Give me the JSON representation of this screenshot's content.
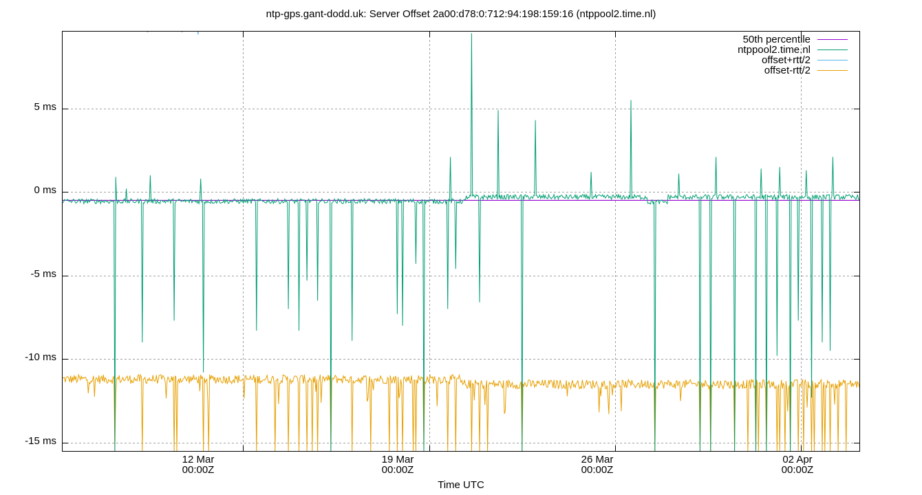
{
  "chart_data": {
    "type": "line",
    "title": "ntp-gps.gant-dodd.uk: Server Offset 2a00:d78:0:712:94:198:159:16 (ntppool2.time.nl)",
    "xlabel": "Time UTC",
    "ylabel": "",
    "y_unit": "ms",
    "ylim": [
      -15.5,
      9.6
    ],
    "xlim": [
      "2024-03-05T05:00Z",
      "2024-04-04T05:00Z"
    ],
    "grid": true,
    "legend_position": "top-right",
    "y_ticks": [
      "5 ms",
      "0 ms",
      "-5 ms",
      "-10 ms",
      "-15 ms"
    ],
    "y_tick_values": [
      5,
      0,
      -5,
      -10,
      -15
    ],
    "x_ticks": [
      {
        "line1": "12 Mar",
        "line2": "00:00Z"
      },
      {
        "line1": "19 Mar",
        "line2": "00:00Z"
      },
      {
        "line1": "26 Mar",
        "line2": "00:00Z"
      },
      {
        "line1": "02 Apr",
        "line2": "00:00Z"
      }
    ],
    "series": [
      {
        "name": "50th percentile",
        "color": "#9400d3",
        "description": "flat median line",
        "value": -0.5
      },
      {
        "name": "ntppool2.time.nl",
        "color": "#009e73",
        "description": "server offset; baseline ~-0.5 ms until ~20 Mar then ~-0.3 ms; frequent negative spikes to -5..-15 ms; positive spikes up to ~9.5 ms (21 Mar)",
        "baseline_segments": [
          {
            "from_day": 0,
            "to_day": 15.2,
            "value": -0.55
          },
          {
            "from_day": 15.2,
            "to_day": 30,
            "value": -0.3
          }
        ],
        "positive_spikes": [
          {
            "day": 2.0,
            "value": 0.9
          },
          {
            "day": 2.4,
            "value": 0.2
          },
          {
            "day": 3.3,
            "value": 1.0
          },
          {
            "day": 5.2,
            "value": 0.8
          },
          {
            "day": 14.6,
            "value": 2.1
          },
          {
            "day": 15.4,
            "value": 9.5
          },
          {
            "day": 16.4,
            "value": 4.9
          },
          {
            "day": 17.8,
            "value": 4.3
          },
          {
            "day": 19.9,
            "value": 1.2
          },
          {
            "day": 21.4,
            "value": 5.5
          },
          {
            "day": 23.2,
            "value": 1.1
          },
          {
            "day": 24.6,
            "value": 2.1
          },
          {
            "day": 26.3,
            "value": 1.4
          },
          {
            "day": 27.0,
            "value": 1.5
          },
          {
            "day": 28.0,
            "value": 1.3
          },
          {
            "day": 29.0,
            "value": 2.1
          }
        ],
        "negative_spikes": [
          {
            "day": 1.95,
            "value": -15.5
          },
          {
            "day": 3.0,
            "value": -9.0
          },
          {
            "day": 4.2,
            "value": -7.7
          },
          {
            "day": 5.3,
            "value": -10.8
          },
          {
            "day": 7.3,
            "value": -8.3
          },
          {
            "day": 8.5,
            "value": -7.0
          },
          {
            "day": 8.9,
            "value": -8.3
          },
          {
            "day": 9.2,
            "value": -5.3
          },
          {
            "day": 9.6,
            "value": -6.5
          },
          {
            "day": 10.1,
            "value": -15.5
          },
          {
            "day": 10.9,
            "value": -8.9
          },
          {
            "day": 12.6,
            "value": -7.3
          },
          {
            "day": 12.8,
            "value": -8.0
          },
          {
            "day": 13.3,
            "value": -4.3
          },
          {
            "day": 13.6,
            "value": -15.5
          },
          {
            "day": 14.5,
            "value": -7.0
          },
          {
            "day": 14.8,
            "value": -4.6
          },
          {
            "day": 15.7,
            "value": -6.6
          },
          {
            "day": 17.3,
            "value": -15.5
          },
          {
            "day": 22.3,
            "value": -15.5
          },
          {
            "day": 24.0,
            "value": -15.5
          },
          {
            "day": 24.4,
            "value": -15.5
          },
          {
            "day": 25.3,
            "value": -15.5
          },
          {
            "day": 26.1,
            "value": -15.5
          },
          {
            "day": 26.5,
            "value": -15.5
          },
          {
            "day": 26.9,
            "value": -9.8
          },
          {
            "day": 27.4,
            "value": -15.5
          },
          {
            "day": 27.7,
            "value": -7.7
          },
          {
            "day": 28.2,
            "value": -12.3
          },
          {
            "day": 28.6,
            "value": -9.0
          },
          {
            "day": 28.9,
            "value": -9.5
          }
        ]
      },
      {
        "name": "offset+rtt/2",
        "color": "#56b4e9",
        "description": "mostly above plotted range (>9.6 ms); only tiny clipped fragments visible at top edge"
      },
      {
        "name": "offset-rtt/2",
        "color": "#e69f00",
        "description": "baseline ~-11.2 ms in early March drifting to ~-11.5 ms late March / April with many downward spikes below -15.5 ms",
        "baseline_segments": [
          {
            "from_day": 0,
            "to_day": 15,
            "value": -11.2
          },
          {
            "from_day": 15,
            "to_day": 30,
            "value": -11.5
          }
        ]
      }
    ]
  },
  "legend": {
    "items": [
      {
        "label": "50th percentile",
        "color": "#9400d3"
      },
      {
        "label": "ntppool2.time.nl",
        "color": "#009e73"
      },
      {
        "label": "offset+rtt/2",
        "color": "#56b4e9"
      },
      {
        "label": "offset-rtt/2",
        "color": "#e69f00"
      }
    ]
  }
}
